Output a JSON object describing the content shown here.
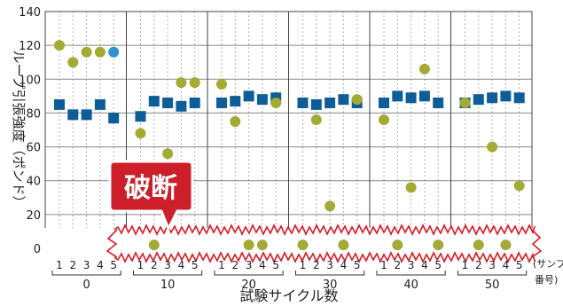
{
  "chart_data": {
    "type": "scatter",
    "title": "",
    "ylabel": "ループ引張強度（ポンド）",
    "xlabel": "試験サイクル数",
    "xsub_label": "(サンプル番号)",
    "ylim": [
      0,
      140
    ],
    "yticks": [
      0,
      20,
      40,
      60,
      80,
      100,
      120,
      140
    ],
    "cycle_labels": [
      "0",
      "10",
      "20",
      "30",
      "40",
      "50"
    ],
    "sample_labels": [
      "1",
      "2",
      "3",
      "4",
      "5"
    ],
    "annotation": "破断",
    "grid": true,
    "series": [
      {
        "marker": "square",
        "color": "#0d5e98",
        "values": [
          [
            85,
            79,
            79,
            85,
            77
          ],
          [
            78,
            87,
            86,
            84,
            86
          ],
          [
            86,
            87,
            90,
            88,
            89
          ],
          [
            86,
            85,
            86,
            88,
            86
          ],
          [
            86,
            90,
            89,
            90,
            86
          ],
          [
            86,
            88,
            89,
            90,
            89
          ]
        ]
      },
      {
        "marker": "circle",
        "color": "#a3ab35",
        "values": [
          [
            120,
            110,
            116,
            116,
            null
          ],
          [
            68,
            2,
            56,
            98,
            98
          ],
          [
            97,
            75,
            2,
            2,
            86
          ],
          [
            2,
            76,
            25,
            2,
            88
          ],
          [
            76,
            2,
            36,
            106,
            2
          ],
          [
            86,
            2,
            60,
            2,
            37
          ]
        ]
      },
      {
        "marker": "circle",
        "color": "#2e93d0",
        "values": [
          [
            null,
            null,
            null,
            null,
            116
          ],
          [
            null,
            null,
            null,
            null,
            null
          ],
          [
            null,
            null,
            null,
            null,
            null
          ],
          [
            null,
            null,
            null,
            null,
            null
          ],
          [
            null,
            null,
            null,
            null,
            null
          ],
          [
            null,
            null,
            null,
            null,
            null
          ]
        ]
      }
    ]
  }
}
